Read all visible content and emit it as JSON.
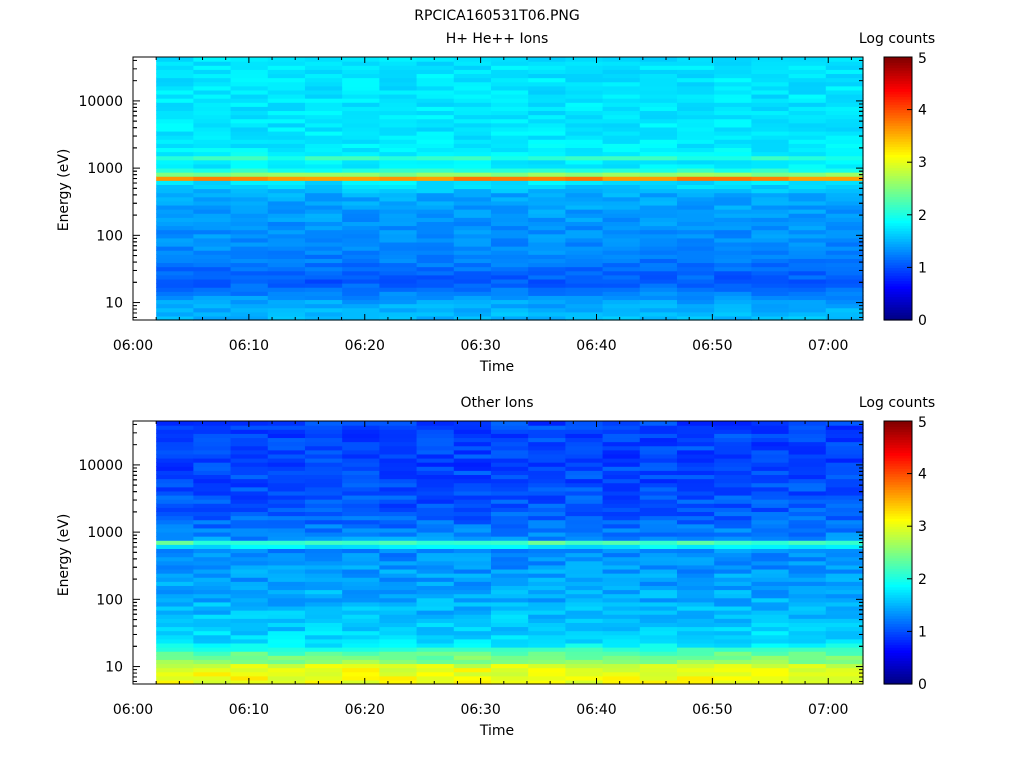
{
  "figure": {
    "title": "RPCICA160531T06.PNG"
  },
  "chart_data": [
    {
      "type": "heatmap",
      "title": "H+ He++ Ions",
      "xlabel": "Time",
      "ylabel": "Energy (eV)",
      "x_ticks": [
        "06:00",
        "06:10",
        "06:20",
        "06:30",
        "06:40",
        "06:50",
        "07:00"
      ],
      "x_range": [
        "06:00",
        "07:03"
      ],
      "data_start": "06:02",
      "y_scale": "log",
      "y_ticks": [
        10,
        100,
        1000,
        10000
      ],
      "y_range": [
        5.5,
        45000
      ],
      "colorbar": {
        "label": "Log counts",
        "ticks": [
          0,
          1,
          2,
          3,
          4,
          5
        ],
        "range": [
          0,
          5
        ],
        "colormap": "jet"
      },
      "time_bins": 19,
      "profile": [
        {
          "energy": 5.5,
          "log_counts": 1.55
        },
        {
          "energy": 10,
          "log_counts": 1.45
        },
        {
          "energy": 20,
          "log_counts": 1.05
        },
        {
          "energy": 30,
          "log_counts": 1.15
        },
        {
          "energy": 60,
          "log_counts": 1.3
        },
        {
          "energy": 150,
          "log_counts": 1.35
        },
        {
          "energy": 400,
          "log_counts": 1.45
        },
        {
          "energy": 620,
          "log_counts": 1.75
        },
        {
          "energy": 720,
          "log_counts": 3.95
        },
        {
          "energy": 800,
          "log_counts": 2.6
        },
        {
          "energy": 1000,
          "log_counts": 1.8
        },
        {
          "energy": 1400,
          "log_counts": 1.8
        },
        {
          "energy": 1500,
          "log_counts": 2.75
        },
        {
          "energy": 1650,
          "log_counts": 1.8
        },
        {
          "energy": 5000,
          "log_counts": 1.75
        },
        {
          "energy": 45000,
          "log_counts": 1.75
        }
      ],
      "noise": 0.12
    },
    {
      "type": "heatmap",
      "title": "Other Ions",
      "xlabel": "Time",
      "ylabel": "Energy (eV)",
      "x_ticks": [
        "06:00",
        "06:10",
        "06:20",
        "06:30",
        "06:40",
        "06:50",
        "07:00"
      ],
      "x_range": [
        "06:00",
        "07:03"
      ],
      "data_start": "06:02",
      "y_scale": "log",
      "y_ticks": [
        10,
        100,
        1000,
        10000
      ],
      "y_range": [
        5.5,
        45000
      ],
      "colorbar": {
        "label": "Log counts",
        "ticks": [
          0,
          1,
          2,
          3,
          4,
          5
        ],
        "range": [
          0,
          5
        ],
        "colormap": "jet"
      },
      "time_bins": 19,
      "profile": [
        {
          "energy": 5.5,
          "log_counts": 3.1
        },
        {
          "energy": 10,
          "log_counts": 3.0
        },
        {
          "energy": 12,
          "log_counts": 2.55
        },
        {
          "energy": 16,
          "log_counts": 2.3
        },
        {
          "energy": 22,
          "log_counts": 1.75
        },
        {
          "energy": 60,
          "log_counts": 1.55
        },
        {
          "energy": 200,
          "log_counts": 1.4
        },
        {
          "energy": 550,
          "log_counts": 1.3
        },
        {
          "energy": 700,
          "log_counts": 2.3
        },
        {
          "energy": 820,
          "log_counts": 1.3
        },
        {
          "energy": 2000,
          "log_counts": 1.05
        },
        {
          "energy": 10000,
          "log_counts": 0.95
        },
        {
          "energy": 45000,
          "log_counts": 0.95
        }
      ],
      "noise": 0.18
    }
  ]
}
